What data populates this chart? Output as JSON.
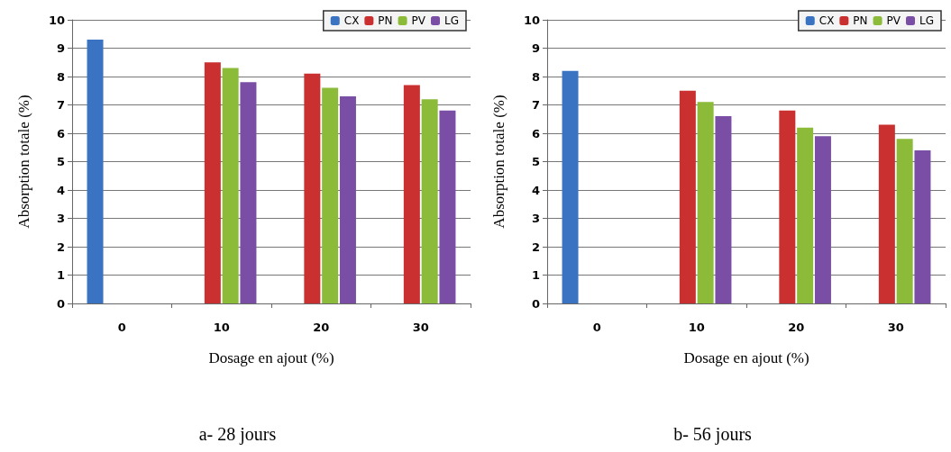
{
  "chart_data": [
    {
      "type": "bar",
      "title": "a- 28 jours",
      "xlabel": "Dosage en ajout (%)",
      "ylabel": "Absorption totale (%)",
      "categories": [
        "0",
        "10",
        "20",
        "30"
      ],
      "ylim": [
        0,
        10
      ],
      "yticks": [
        0,
        1,
        2,
        3,
        4,
        5,
        6,
        7,
        8,
        9,
        10
      ],
      "grid": "y",
      "legend": "top right",
      "series": [
        {
          "name": "CX",
          "color": "#3a73c2",
          "values": [
            9.3,
            null,
            null,
            null
          ]
        },
        {
          "name": "PN",
          "color": "#c9302f",
          "values": [
            null,
            8.5,
            8.1,
            7.7
          ]
        },
        {
          "name": "PV",
          "color": "#8cbb3a",
          "values": [
            null,
            8.3,
            7.6,
            7.2
          ]
        },
        {
          "name": "LG",
          "color": "#7b4ea6",
          "values": [
            null,
            7.8,
            7.3,
            6.8
          ]
        }
      ]
    },
    {
      "type": "bar",
      "title": "b- 56 jours",
      "xlabel": "Dosage en ajout (%)",
      "ylabel": "Absorption totale (%)",
      "categories": [
        "0",
        "10",
        "20",
        "30"
      ],
      "ylim": [
        0,
        10
      ],
      "yticks": [
        0,
        1,
        2,
        3,
        4,
        5,
        6,
        7,
        8,
        9,
        10
      ],
      "grid": "y",
      "legend": "top right",
      "series": [
        {
          "name": "CX",
          "color": "#3a73c2",
          "values": [
            8.2,
            null,
            null,
            null
          ]
        },
        {
          "name": "PN",
          "color": "#c9302f",
          "values": [
            null,
            7.5,
            6.8,
            6.3
          ]
        },
        {
          "name": "PV",
          "color": "#8cbb3a",
          "values": [
            null,
            7.1,
            6.2,
            5.8
          ]
        },
        {
          "name": "LG",
          "color": "#7b4ea6",
          "values": [
            null,
            6.6,
            5.9,
            5.4
          ]
        }
      ]
    }
  ]
}
